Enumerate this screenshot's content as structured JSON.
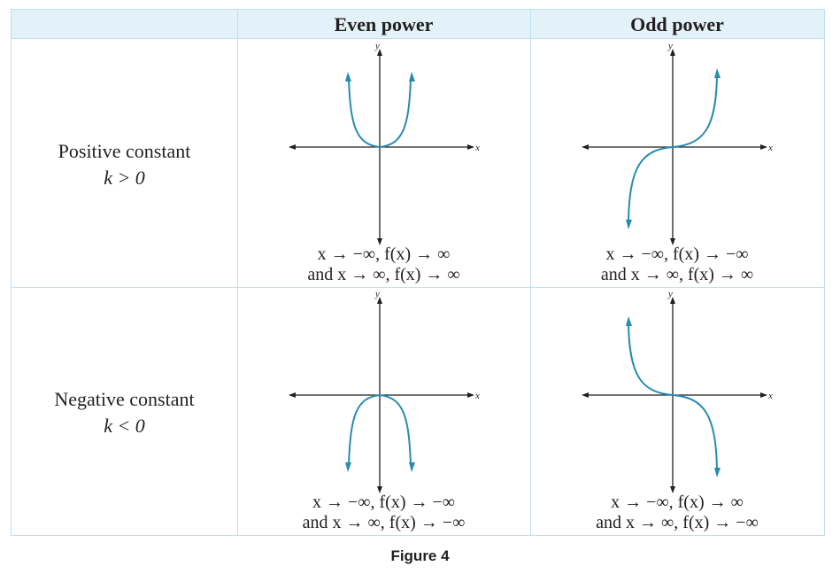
{
  "header": {
    "col1": "Even power",
    "col2": "Odd power"
  },
  "rows": [
    {
      "label_line1": "Positive constant",
      "label_line2": "k > 0",
      "even_caption_1": "x → −∞, f(x) → ∞",
      "even_caption_2": "and x → ∞, f(x) → ∞",
      "odd_caption_1": "x → −∞, f(x) → −∞",
      "odd_caption_2": "and x → ∞, f(x) → ∞"
    },
    {
      "label_line1": "Negative constant",
      "label_line2": "k < 0",
      "even_caption_1": "x → −∞, f(x) → −∞",
      "even_caption_2": "and x → ∞, f(x) → −∞",
      "odd_caption_1": "x → −∞, f(x) → ∞",
      "odd_caption_2": "and x → ∞, f(x) → −∞"
    }
  ],
  "axis_labels": {
    "x": "x",
    "y": "y"
  },
  "figure_caption": "Figure 4",
  "colors": {
    "curve": "#2a8bb0",
    "axis": "#231f20",
    "border": "#bfe0ee",
    "header_bg": "#e3f1f8"
  }
}
